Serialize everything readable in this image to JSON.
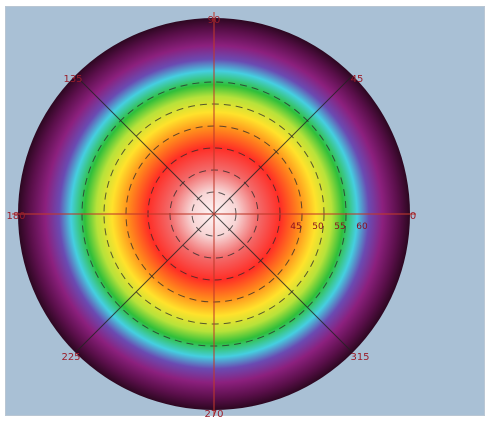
{
  "chart_data": {
    "type": "heatmap",
    "projection": "polar",
    "title": "",
    "angular_tick_labels": [
      "0",
      "45",
      "90",
      "135",
      "180",
      "225",
      "270",
      "315"
    ],
    "radial_tick_labels": [
      "45",
      "50",
      "55",
      "60"
    ],
    "radial_grid": "dashed",
    "grid": true,
    "colormap": [
      "#ffffff",
      "#f6d6d6",
      "#ff3a2e",
      "#ff8a1a",
      "#ffe12a",
      "#c8e03a",
      "#2fbf3a",
      "#38c7d9",
      "#6b3aa8",
      "#8a1f7f",
      "#3a0a2a"
    ],
    "colors": {
      "background": "#a9c0d5",
      "grid": "#333333",
      "crosshair": "#c0392b",
      "tick_label": "#9a1d2a"
    },
    "legend": "none"
  }
}
